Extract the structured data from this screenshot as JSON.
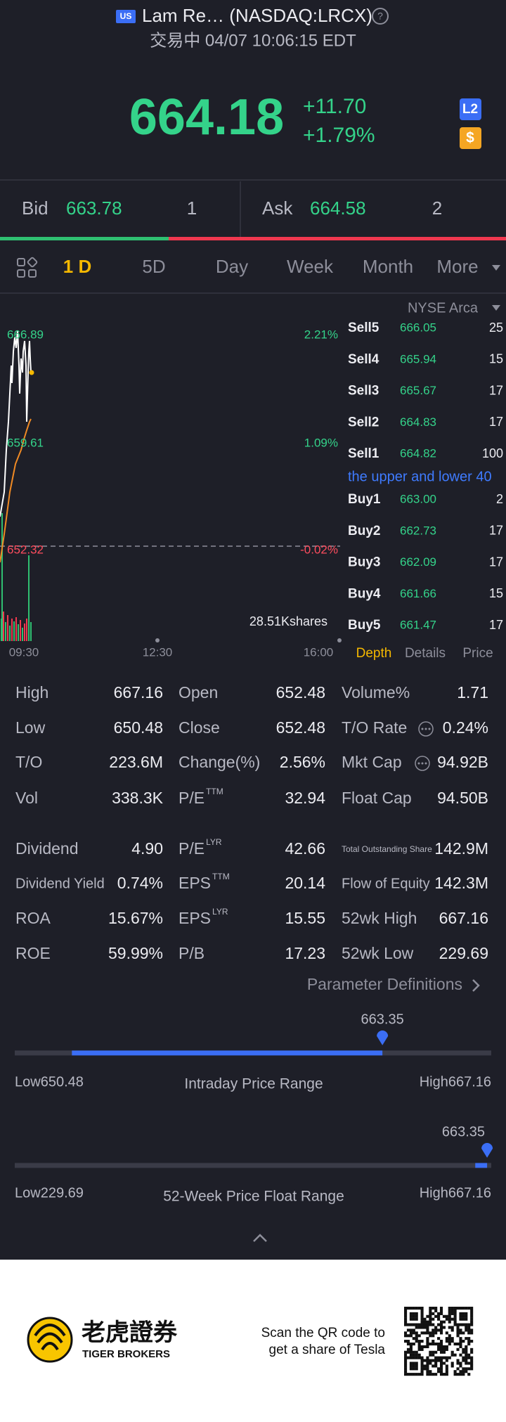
{
  "header": {
    "badge": "US",
    "title": "Lam Re… (NASDAQ:LRCX)",
    "status": "交易中 04/07 10:06:15 EDT"
  },
  "quote": {
    "price": "664.18",
    "change": "+11.70",
    "change_percent": "+1.79%",
    "level_badge": "L2",
    "currency_badge": "$"
  },
  "bid_ask": {
    "bid_label": "Bid",
    "bid_price": "663.78",
    "bid_size": "1",
    "ask_label": "Ask",
    "ask_price": "664.58",
    "ask_size": "2"
  },
  "period_tabs": [
    "1 D",
    "5D",
    "Day",
    "Week",
    "Month",
    "More"
  ],
  "chart": {
    "price_labels": [
      "666.89",
      "659.61",
      "652.32"
    ],
    "percent_labels": [
      "2.21%",
      "1.09%",
      "-0.02%"
    ],
    "volume_label": "28.51Kshares",
    "time_labels": [
      "09:30",
      "12:30",
      "16:00"
    ]
  },
  "order_book": {
    "exchange": "NYSE Arca",
    "sell": [
      {
        "label": "Sell5",
        "price": "666.05",
        "size": "25"
      },
      {
        "label": "Sell4",
        "price": "665.94",
        "size": "15"
      },
      {
        "label": "Sell3",
        "price": "665.67",
        "size": "17"
      },
      {
        "label": "Sell2",
        "price": "664.83",
        "size": "17"
      },
      {
        "label": "Sell1",
        "price": "664.82",
        "size": "100"
      }
    ],
    "notice": "the upper and lower 40",
    "buy": [
      {
        "label": "Buy1",
        "price": "663.00",
        "size": "2"
      },
      {
        "label": "Buy2",
        "price": "662.73",
        "size": "17"
      },
      {
        "label": "Buy3",
        "price": "662.09",
        "size": "17"
      },
      {
        "label": "Buy4",
        "price": "661.66",
        "size": "15"
      },
      {
        "label": "Buy5",
        "price": "661.47",
        "size": "17"
      }
    ],
    "tabs": [
      "Depth",
      "Details",
      "Price"
    ]
  },
  "stats": {
    "rows": [
      [
        {
          "label": "High",
          "value": "667.16"
        },
        {
          "label": "Open",
          "value": "652.48"
        },
        {
          "label": "Volume%",
          "value": "1.71"
        }
      ],
      [
        {
          "label": "Low",
          "value": "650.48"
        },
        {
          "label": "Close",
          "value": "652.48"
        },
        {
          "label": "T/O Rate",
          "value": "0.24%"
        }
      ],
      [
        {
          "label": "T/O",
          "value": "223.6M"
        },
        {
          "label": "Change(%)",
          "value": "2.56%"
        },
        {
          "label": "Mkt Cap",
          "value": "94.92B"
        }
      ],
      [
        {
          "label": "Vol",
          "value": "338.3K"
        },
        {
          "label": "P/E",
          "sup": "TTM",
          "value": "32.94"
        },
        {
          "label": "Float Cap",
          "value": "94.50B"
        }
      ],
      [
        {
          "label": "Dividend",
          "value": "4.90"
        },
        {
          "label": "P/E",
          "sup": "LYR",
          "value": "42.66"
        },
        {
          "label": "Total Outstanding Share",
          "value": "142.9M"
        }
      ],
      [
        {
          "label": "Dividend Yield",
          "value": "0.74%"
        },
        {
          "label": "EPS",
          "sup": "TTM",
          "value": "20.14"
        },
        {
          "label": "Flow of Equity",
          "value": "142.3M"
        }
      ],
      [
        {
          "label": "ROA",
          "value": "15.67%"
        },
        {
          "label": "EPS",
          "sup": "LYR",
          "value": "15.55"
        },
        {
          "label": "52wk High",
          "value": "667.16"
        }
      ],
      [
        {
          "label": "ROE",
          "value": "59.99%"
        },
        {
          "label": "P/B",
          "value": "17.23"
        },
        {
          "label": "52wk Low",
          "value": "229.69"
        }
      ]
    ]
  },
  "parameter_link": "Parameter Definitions",
  "ranges": [
    {
      "title": "Intraday Price Range",
      "current": 663.35,
      "low_label": "Low",
      "low": 650.48,
      "high_label": "High",
      "high": 667.16
    },
    {
      "title": "52-Week Price Float Range",
      "current": 663.35,
      "low_label": "Low",
      "low": 229.69,
      "high_label": "High",
      "high": 667.16
    }
  ],
  "footer": {
    "brand_cn": "老虎證券",
    "brand_en": "TIGER BROKERS",
    "scan_text": [
      "Scan the QR code to",
      "get a share of Tesla"
    ]
  }
}
